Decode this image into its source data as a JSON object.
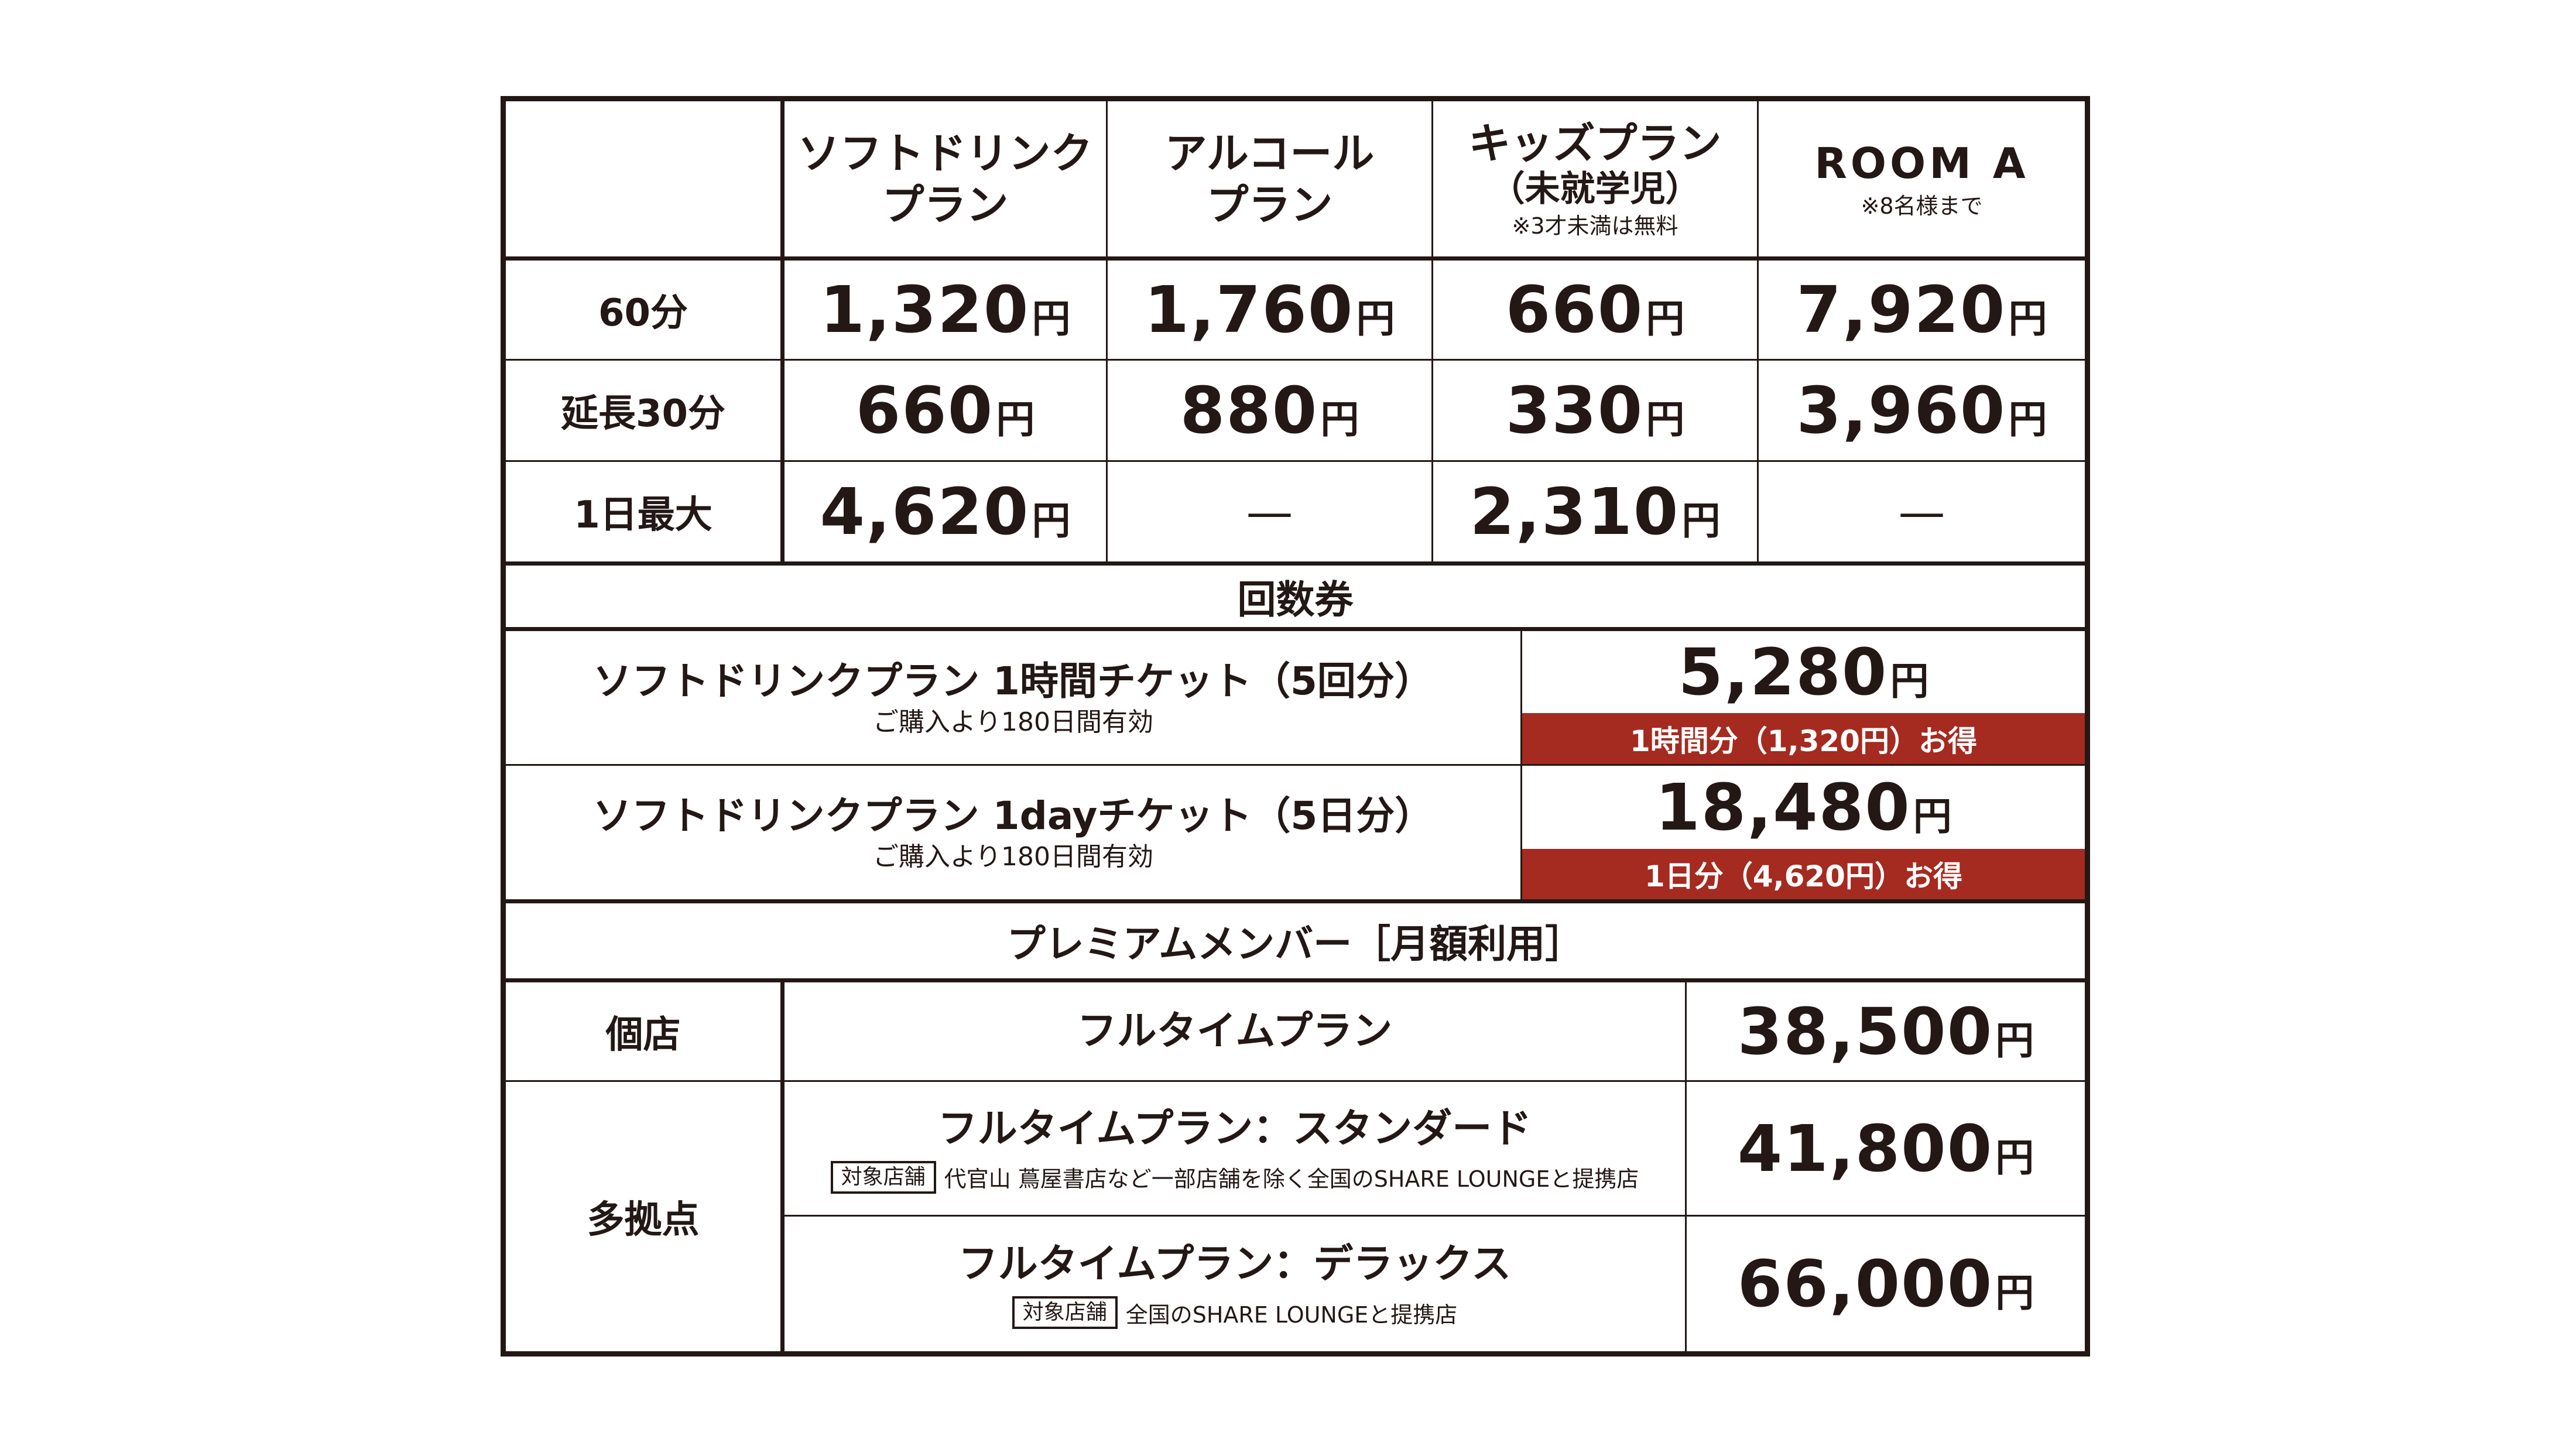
{
  "header": {
    "col1": {
      "line1": "ソフトドリンク",
      "line2": "プラン"
    },
    "col2": {
      "line1": "アルコール",
      "line2": "プラン"
    },
    "col3": {
      "line1": "キッズプラン",
      "line2": "（未就学児）",
      "note": "※3才未満は無料"
    },
    "col4": {
      "line1": "ROOM A",
      "note": "※8名様まで"
    }
  },
  "unit": "円",
  "rows": [
    {
      "label": "60分",
      "values": [
        "1,320",
        "1,760",
        "660",
        "7,920"
      ]
    },
    {
      "label": "延長30分",
      "values": [
        "660",
        "880",
        "330",
        "3,960"
      ]
    },
    {
      "label": "1日最大",
      "values": [
        "4,620",
        "—",
        "2,310",
        "—"
      ]
    }
  ],
  "tickets_section": {
    "title": "回数券",
    "items": [
      {
        "name": "ソフトドリンクプラン 1時間チケット（5回分）",
        "note": "ご購入より180日間有効",
        "price": "5,280",
        "benefit": "1時間分（1,320円）お得"
      },
      {
        "name": "ソフトドリンクプラン 1dayチケット（5日分）",
        "note": "ご購入より180日間有効",
        "price": "18,480",
        "benefit": "1日分（4,620円）お得"
      }
    ]
  },
  "premium_section": {
    "title": "プレミアムメンバー［月額利用］",
    "single_store": {
      "label": "個店",
      "plan": "フルタイムプラン",
      "price": "38,500"
    },
    "multi_store": {
      "label": "多拠点",
      "plans": [
        {
          "name": "フルタイムプラン：スタンダード",
          "tag": "対象店舗",
          "target": "代官山 蔦屋書店など一部店舗を除く全国のSHARE LOUNGEと提携店",
          "price": "41,800"
        },
        {
          "name": "フルタイムプラン：デラックス",
          "tag": "対象店舗",
          "target": "全国のSHARE LOUNGEと提携店",
          "price": "66,000"
        }
      ]
    }
  },
  "colors": {
    "border": "#231815",
    "accent_red": "#a52a1f",
    "background": "#ffffff"
  }
}
